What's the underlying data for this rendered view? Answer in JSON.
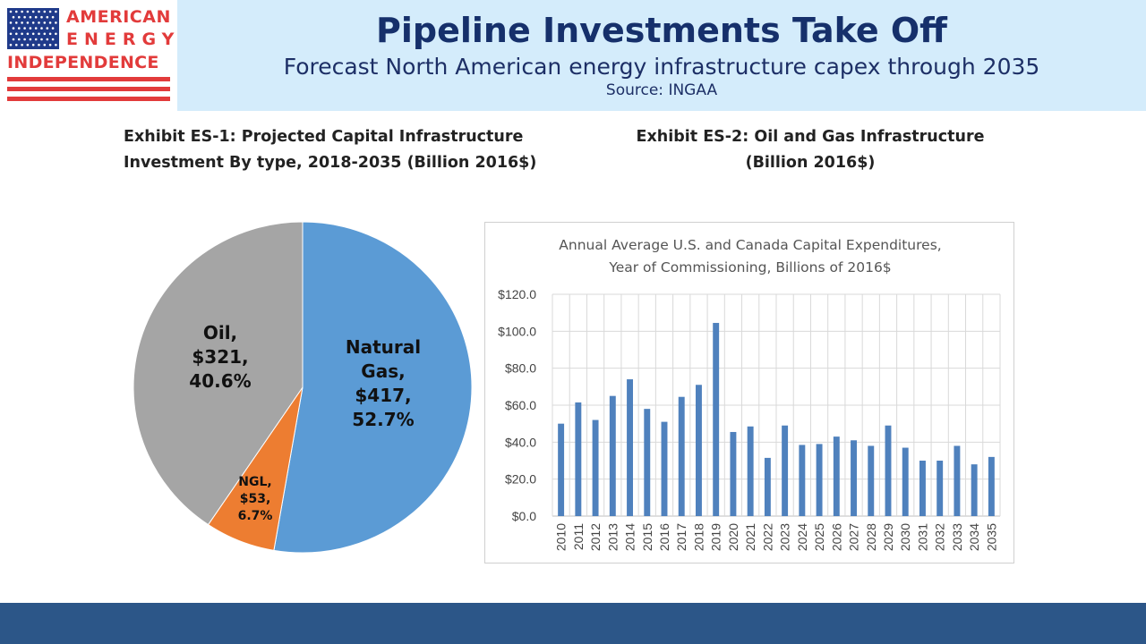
{
  "logo": {
    "line1": "AMERICAN",
    "line2": "ENERGY",
    "line3": "INDEPENDENCE",
    "colors": {
      "flag_blue": "#1f3a8a",
      "red": "#e23b3b"
    }
  },
  "header": {
    "title": "Pipeline Investments Take Off",
    "subtitle": "Forecast North American energy infrastructure capex through 2035",
    "source": "Source: INGAA"
  },
  "exhibits": {
    "es1_line1": "Exhibit ES-1: Projected Capital Infrastructure",
    "es1_line2": "Investment By type, 2018-2035 (Billion 2016$)",
    "es2_line1": "Exhibit ES-2: Oil and Gas Infrastructure",
    "es2_line2": "(Billion 2016$)"
  },
  "chart_data": [
    {
      "type": "pie",
      "slices": [
        {
          "name": "Natural Gas",
          "value": 417,
          "percent": 52.7,
          "label_lines": [
            "Natural",
            "Gas,",
            "$417,",
            "52.7%"
          ],
          "color": "#5b9bd5"
        },
        {
          "name": "NGL",
          "value": 53,
          "percent": 6.7,
          "label_lines": [
            "NGL,",
            "$53,",
            "6.7%"
          ],
          "color": "#ed7d31"
        },
        {
          "name": "Oil",
          "value": 321,
          "percent": 40.6,
          "label_lines": [
            "Oil,",
            "$321,",
            "40.6%"
          ],
          "color": "#a5a5a5"
        }
      ]
    },
    {
      "type": "bar",
      "title_line1": "Annual Average U.S. and Canada Capital Expenditures,",
      "title_line2": "Year of Commissioning, Billions of 2016$",
      "categories": [
        "2010",
        "2011",
        "2012",
        "2013",
        "2014",
        "2015",
        "2016",
        "2017",
        "2018",
        "2019",
        "2020",
        "2021",
        "2022",
        "2023",
        "2024",
        "2025",
        "2026",
        "2027",
        "2028",
        "2029",
        "2030",
        "2031",
        "2032",
        "2033",
        "2034",
        "2035"
      ],
      "values": [
        50,
        61.5,
        52,
        65,
        74,
        58,
        51,
        64.5,
        71,
        104.5,
        45.5,
        48.5,
        31.5,
        49,
        38.5,
        39,
        43,
        41,
        38,
        49,
        37,
        30,
        30,
        38,
        28,
        32
      ],
      "ylim": [
        0,
        120
      ],
      "yticks": [
        "$0.0",
        "$20.0",
        "$40.0",
        "$60.0",
        "$80.0",
        "$100.0",
        "$120.0"
      ],
      "bar_color": "#4f81bd",
      "grid": true
    }
  ]
}
